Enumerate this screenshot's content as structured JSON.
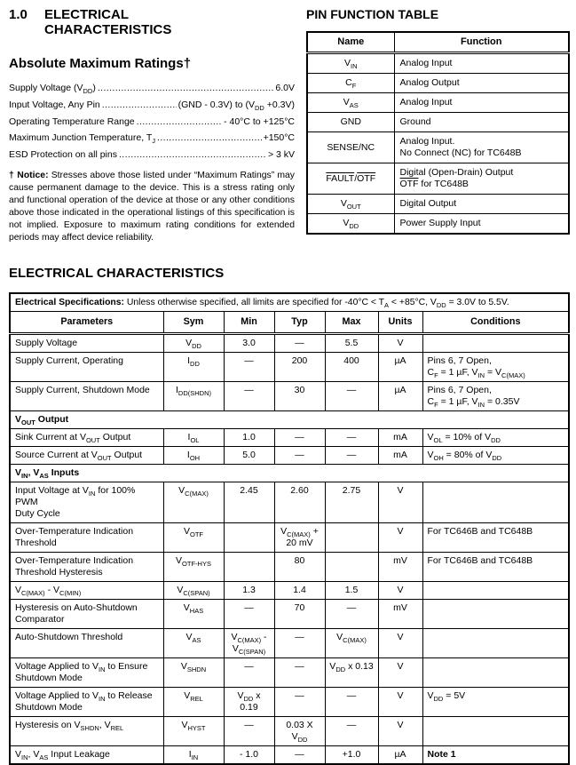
{
  "section": {
    "number": "1.0",
    "title_line1": "ELECTRICAL",
    "title_line2": "CHARACTERISTICS"
  },
  "abs_max": {
    "title": "Absolute Maximum Ratings†",
    "items": [
      {
        "label": "Supply Voltage (V_{DD})",
        "value": "6.0V"
      },
      {
        "label": "Input Voltage, Any Pin",
        "value": "(GND - 0.3V) to (V_{DD} +0.3V)"
      },
      {
        "label": "Operating Temperature Range",
        "value": "- 40°C to +125°C"
      },
      {
        "label": "Maximum Junction Temperature, T_{J}",
        "value": "+150°C"
      },
      {
        "label": "ESD Protection on all pins",
        "value": "> 3 kV"
      }
    ],
    "notice_label": "† Notice:",
    "notice_text": " Stresses above those listed under “Maximum Ratings” may cause permanent damage to the device. This is a stress rating only and functional operation of the device at those or any other conditions above those indicated in the operational listings of this specification is not implied. Exposure to maximum rating conditions for extended periods may affect device reliability."
  },
  "pin_table": {
    "title": "PIN FUNCTION TABLE",
    "columns": [
      "Name",
      "Function"
    ],
    "rows": [
      {
        "name": "V_{IN}",
        "func": "Analog Input"
      },
      {
        "name": "C_{F}",
        "func": "Analog Output"
      },
      {
        "name": "V_{AS}",
        "func": "Analog Input"
      },
      {
        "name": "GND",
        "func": "Ground"
      },
      {
        "name": "SENSE/NC",
        "func": "Analog Input.\nNo Connect (NC) for TC648B"
      },
      {
        "name": "@{FAULT}/@{OTF}",
        "func": "Digital (Open-Drain) Output\n@{OTF} for TC648B"
      },
      {
        "name": "V_{OUT}",
        "func": "Digital Output"
      },
      {
        "name": "V_{DD}",
        "func": "Power Supply Input"
      }
    ]
  },
  "elec": {
    "title": "ELECTRICAL CHARACTERISTICS",
    "spec_label": "Electrical Specifications:",
    "spec_text": " Unless otherwise specified, all limits are specified for -40°C < T_{A} < +85°C, V_{DD} = 3.0V to 5.5V.",
    "columns": [
      "Parameters",
      "Sym",
      "Min",
      "Typ",
      "Max",
      "Units",
      "Conditions"
    ],
    "rows": [
      {
        "type": "data",
        "cells": [
          "Supply Voltage",
          "V_{DD}",
          "3.0",
          "—",
          "5.5",
          "V",
          ""
        ]
      },
      {
        "type": "data",
        "cells": [
          "Supply Current, Operating",
          "I_{DD}",
          "—",
          "200",
          "400",
          "µA",
          "Pins 6, 7 Open,\nC_{F} = 1 µF, V_{IN} = V_{C(MAX)}"
        ]
      },
      {
        "type": "data",
        "cells": [
          "Supply Current, Shutdown Mode",
          "I_{DD(SHDN)}",
          "—",
          "30",
          "—",
          "µA",
          "Pins 6, 7 Open,\nC_{F} = 1 µF, V_{IN} = 0.35V"
        ]
      },
      {
        "type": "section",
        "label": "V_{OUT} Output"
      },
      {
        "type": "data",
        "cells": [
          "Sink Current at V_{OUT} Output",
          "I_{OL}",
          "1.0",
          "—",
          "—",
          "mA",
          "V_{OL} = 10% of V_{DD}"
        ]
      },
      {
        "type": "data",
        "cells": [
          "Source Current at V_{OUT} Output",
          "I_{OH}",
          "5.0",
          "—",
          "—",
          "mA",
          "V_{OH} = 80% of V_{DD}"
        ]
      },
      {
        "type": "section",
        "label": "V_{IN}, V_{AS} Inputs"
      },
      {
        "type": "data",
        "cells": [
          "Input Voltage at V_{IN} for 100% PWM\nDuty Cycle",
          "V_{C(MAX)}",
          "2.45",
          "2.60",
          "2.75",
          "V",
          ""
        ]
      },
      {
        "type": "data",
        "cells": [
          "Over-Temperature Indication\nThreshold",
          "V_{OTF}",
          "",
          "V_{C(MAX)} +\n20 mV",
          "",
          "V",
          "For TC646B and TC648B"
        ]
      },
      {
        "type": "data",
        "cells": [
          "Over-Temperature Indication\nThreshold Hysteresis",
          "V_{OTF-HYS}",
          "",
          "80",
          "",
          "mV",
          "For TC646B and TC648B"
        ]
      },
      {
        "type": "data",
        "cells": [
          "V_{C(MAX)} - V_{C(MIN)}",
          "V_{C(SPAN)}",
          "1.3",
          "1.4",
          "1.5",
          "V",
          ""
        ]
      },
      {
        "type": "data",
        "cells": [
          "Hysteresis on Auto-Shutdown\nComparator",
          "V_{HAS}",
          "—",
          "70",
          "—",
          "mV",
          ""
        ]
      },
      {
        "type": "data",
        "cells": [
          "Auto-Shutdown Threshold",
          "V_{AS}",
          "V_{C(MAX)} -\nV_{C(SPAN)}",
          "—",
          "V_{C(MAX)}",
          "V",
          ""
        ]
      },
      {
        "type": "data",
        "cells": [
          "Voltage Applied to V_{IN} to Ensure\nShutdown Mode",
          "V_{SHDN}",
          "—",
          "—",
          "V_{DD} x 0.13",
          "V",
          ""
        ]
      },
      {
        "type": "data",
        "cells": [
          "Voltage Applied to V_{IN} to Release\nShutdown Mode",
          "V_{REL}",
          "V_{DD} x 0.19",
          "—",
          "—",
          "V",
          "V_{DD} = 5V"
        ]
      },
      {
        "type": "data",
        "cells": [
          "Hysteresis on V_{SHDN}, V_{REL}",
          "V_{HYST}",
          "—",
          "0.03 X\nV_{DD}",
          "—",
          "V",
          ""
        ]
      },
      {
        "type": "data",
        "cells": [
          "V_{IN}, V_{AS} Input Leakage",
          "I_{IN}",
          "- 1.0",
          "—",
          "+1.0",
          "µA",
          "*{Note 1}"
        ]
      }
    ]
  }
}
